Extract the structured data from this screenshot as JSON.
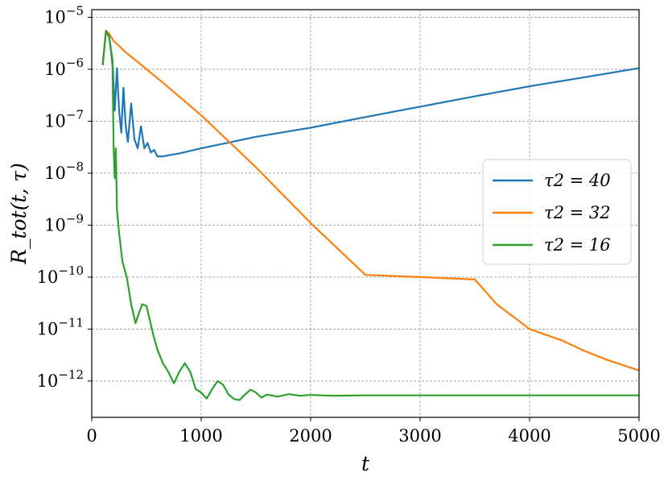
{
  "chart_data": {
    "type": "line",
    "xlabel": "t",
    "ylabel": "R_tot(t, τ)",
    "xlim": [
      0,
      5000
    ],
    "ylim": [
      2e-13,
      1.4e-05
    ],
    "yscale": "log",
    "grid": true,
    "legend_position": "center-right",
    "x_ticks": [
      0,
      1000,
      2000,
      3000,
      4000,
      5000
    ],
    "x_tick_labels": [
      "0",
      "1000",
      "2000",
      "3000",
      "4000",
      "5000"
    ],
    "y_ticks": [
      1e-12,
      1e-11,
      1e-10,
      1e-09,
      1e-08,
      1e-07,
      1e-06,
      1e-05
    ],
    "y_tick_exponents": [
      "-12",
      "-11",
      "-10",
      "-9",
      "-8",
      "-7",
      "-6",
      "-5"
    ],
    "y_tick_base": "10",
    "series": [
      {
        "name": "τ2 = 40",
        "color": "#1f77b4",
        "x": [
          100,
          130,
          160,
          190,
          210,
          230,
          250,
          270,
          290,
          310,
          330,
          360,
          390,
          420,
          450,
          480,
          510,
          540,
          570,
          600,
          650,
          700,
          800,
          1000,
          1500,
          2000,
          2500,
          3000,
          3500,
          4000,
          4500,
          5000
        ],
        "y": [
          1.2e-06,
          5.5e-06,
          4e-06,
          1.5e-06,
          1.6e-07,
          1.05e-06,
          1.6e-07,
          6e-08,
          4.4e-07,
          8e-08,
          4e-08,
          2.2e-07,
          4.5e-08,
          3e-08,
          8e-08,
          3e-08,
          3.8e-08,
          2.5e-08,
          2.8e-08,
          2.1e-08,
          2.1e-08,
          2.2e-08,
          2.4e-08,
          3e-08,
          5e-08,
          7.5e-08,
          1.2e-07,
          1.9e-07,
          3e-07,
          4.7e-07,
          7e-07,
          1.05e-06
        ]
      },
      {
        "name": "τ2 = 32",
        "color": "#ff7f0e",
        "x": [
          100,
          130,
          160,
          200,
          250,
          300,
          400,
          500,
          700,
          1000,
          1500,
          2000,
          2500,
          3000,
          3500,
          3700,
          4000,
          4300,
          4500,
          4700,
          5000
        ],
        "y": [
          1.2e-06,
          5.5e-06,
          4.8e-06,
          3.5e-06,
          2.8e-06,
          2.2e-06,
          1.5e-06,
          1e-06,
          4.5e-07,
          1.3e-07,
          1.3e-08,
          1.1e-09,
          1.1e-10,
          1e-10,
          9e-11,
          3e-11,
          1e-11,
          6e-12,
          3.8e-12,
          2.6e-12,
          1.6e-12
        ]
      },
      {
        "name": "τ2 = 16",
        "color": "#2ca02c",
        "x": [
          100,
          130,
          160,
          190,
          200,
          210,
          220,
          230,
          250,
          280,
          320,
          360,
          400,
          430,
          460,
          500,
          530,
          560,
          600,
          650,
          700,
          750,
          800,
          850,
          900,
          950,
          1000,
          1050,
          1100,
          1150,
          1200,
          1250,
          1300,
          1350,
          1400,
          1450,
          1500,
          1550,
          1600,
          1700,
          1800,
          1900,
          2000,
          2200,
          2500,
          3000,
          4000,
          5000
        ],
        "y": [
          1.2e-06,
          5.5e-06,
          4.2e-06,
          1.2e-06,
          3e-08,
          8e-09,
          3e-08,
          2e-09,
          7e-10,
          2e-10,
          1e-10,
          3e-11,
          1.3e-11,
          2e-11,
          3e-11,
          2.8e-11,
          1.5e-11,
          8e-12,
          4e-12,
          2.2e-12,
          1.5e-12,
          9e-13,
          1.5e-12,
          2.2e-12,
          1.5e-12,
          7e-13,
          6e-13,
          4.6e-13,
          7e-13,
          1e-12,
          8.5e-13,
          5.5e-13,
          4.5e-13,
          4.3e-13,
          5.5e-13,
          6.8e-13,
          6e-13,
          4.8e-13,
          5.5e-13,
          5e-13,
          5.6e-13,
          5.2e-13,
          5.4e-13,
          5.2e-13,
          5.3e-13,
          5.3e-13,
          5.3e-13,
          5.3e-13
        ]
      }
    ]
  }
}
